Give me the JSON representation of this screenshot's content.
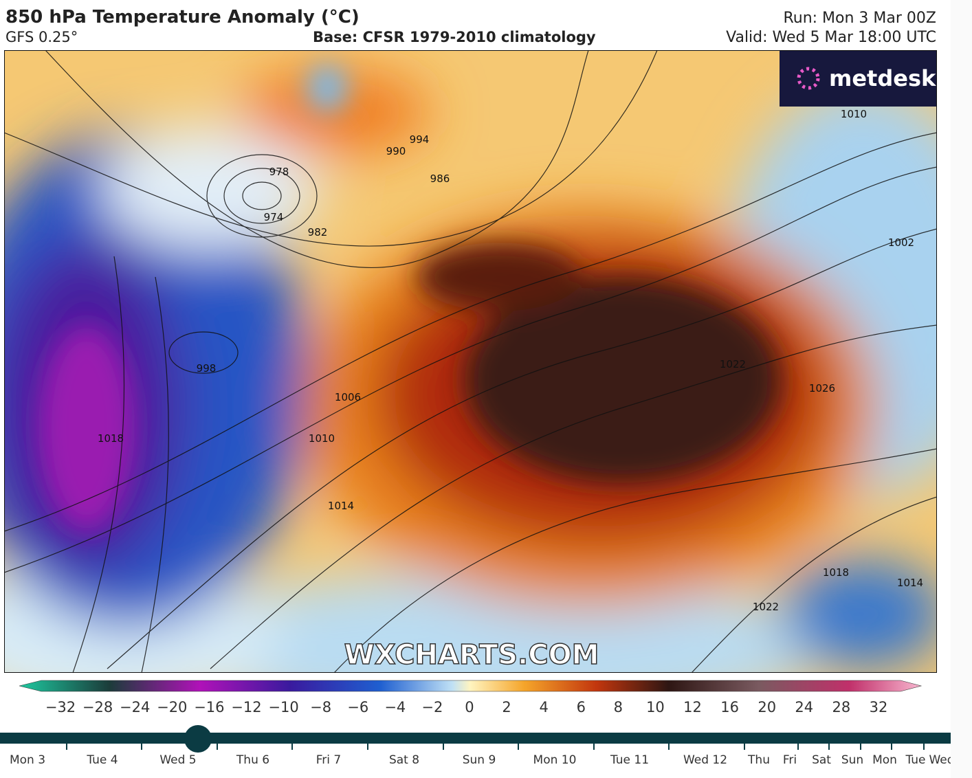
{
  "header": {
    "title": "850 hPa Temperature Anomaly (°C)",
    "model": "GFS 0.25°",
    "base": "Base: CFSR 1979-2010 climatology",
    "run": "Run: Mon 3 Mar 00Z",
    "valid": "Valid: Wed 5 Mar 18:00 UTC"
  },
  "map": {
    "logo": "metdesk",
    "watermark": "WXCHARTS.COM",
    "isobar_labels": [
      "978",
      "974",
      "982",
      "994",
      "990",
      "986",
      "998",
      "1006",
      "1010",
      "1014",
      "1018",
      "1022",
      "1026",
      "1002",
      "1010",
      "1018",
      "1022",
      "1014"
    ]
  },
  "colorbar": {
    "ticks": [
      "−32",
      "−28",
      "−24",
      "−20",
      "−16",
      "−12",
      "−10",
      "−8",
      "−6",
      "−4",
      "−2",
      "0",
      "2",
      "4",
      "6",
      "8",
      "10",
      "12",
      "16",
      "20",
      "24",
      "28",
      "32"
    ]
  },
  "timeline": {
    "days": [
      "Mon 3",
      "Tue 4",
      "Wed 5",
      "Thu 6",
      "Fri 7",
      "Sat 8",
      "Sun 9",
      "Mon 10",
      "Tue 11",
      "Wed 12",
      "Thu",
      "Fri",
      "Sat",
      "Sun",
      "Mon",
      "Tue",
      "Wed"
    ]
  }
}
